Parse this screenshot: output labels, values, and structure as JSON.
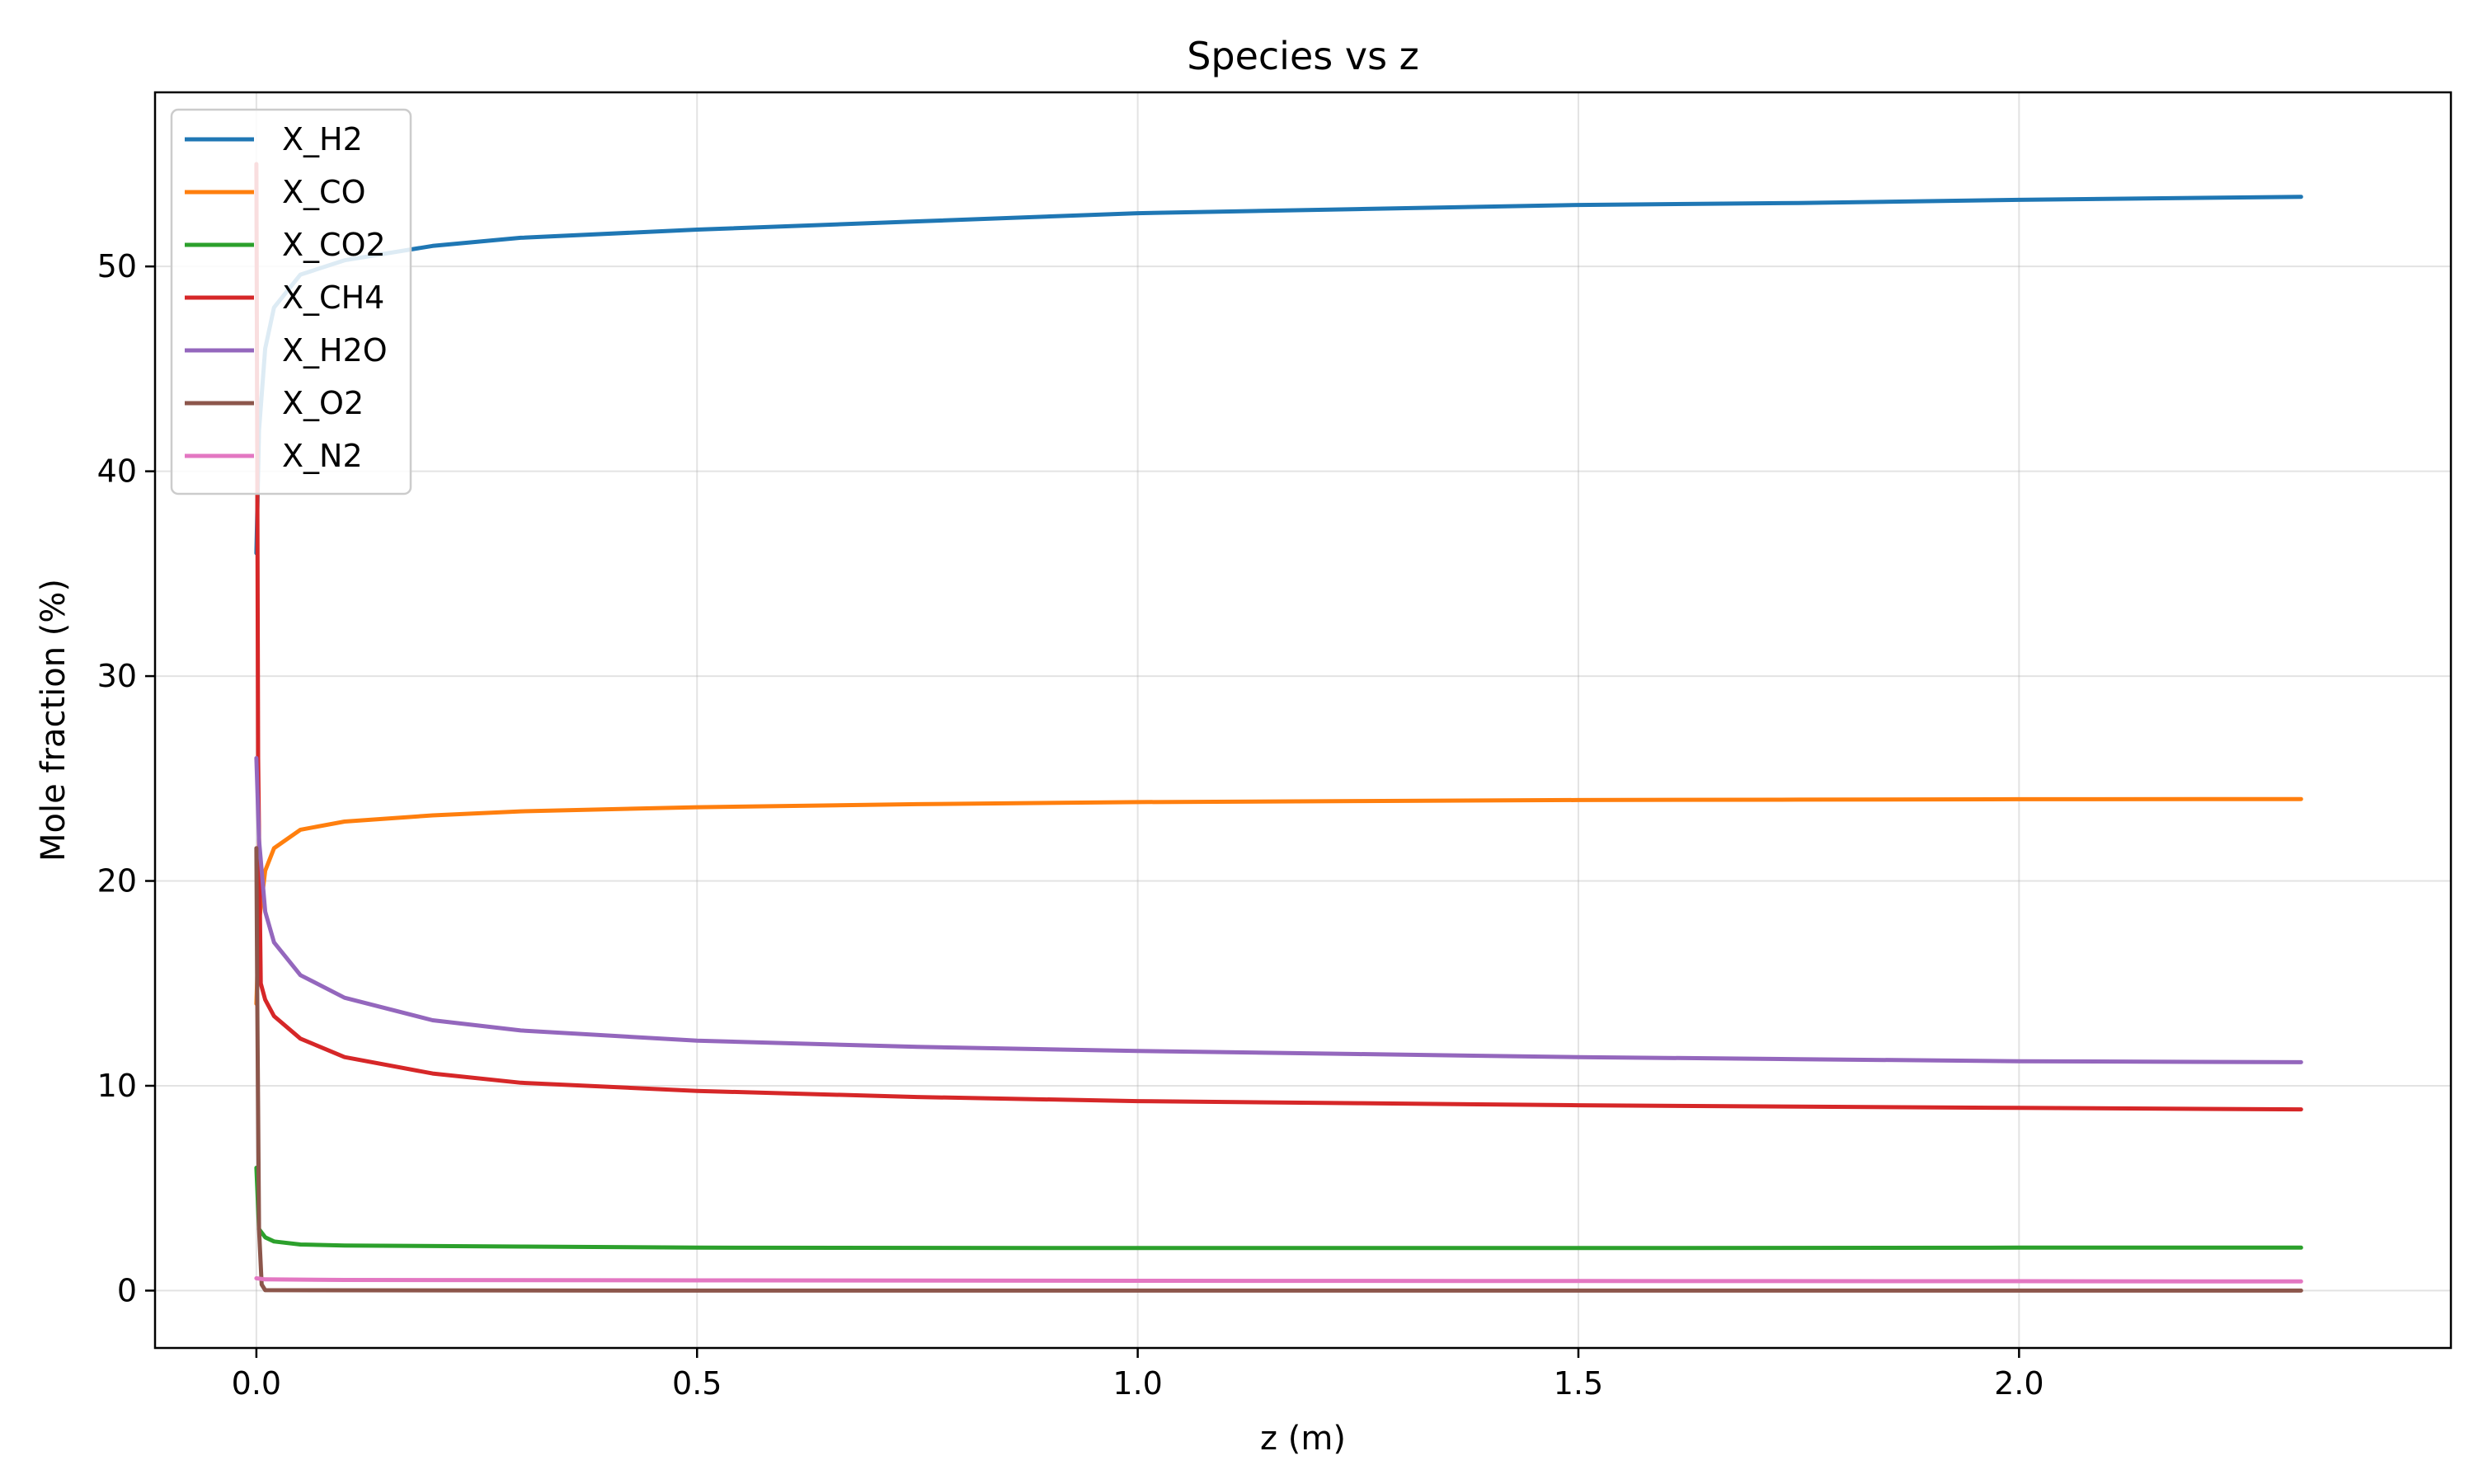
{
  "chart_data": {
    "type": "line",
    "title": "Species vs z",
    "xlabel": "z (m)",
    "ylabel": "Mole fraction (%)",
    "xlim": [
      -0.115,
      2.49
    ],
    "ylim": [
      -2.8,
      58.5
    ],
    "xticks": [
      0.0,
      0.5,
      1.0,
      1.5,
      2.0
    ],
    "xtick_labels": [
      "0.0",
      "0.5",
      "1.0",
      "1.5",
      "2.0"
    ],
    "yticks": [
      0,
      10,
      20,
      30,
      40,
      50
    ],
    "ytick_labels": [
      "0",
      "10",
      "20",
      "30",
      "40",
      "50"
    ],
    "grid": true,
    "legend_position": "top-left",
    "series": [
      {
        "name": "X_H2",
        "color": "#1f77b4",
        "x": [
          0,
          0.003,
          0.01,
          0.02,
          0.05,
          0.1,
          0.2,
          0.3,
          0.5,
          0.75,
          1.0,
          1.25,
          1.5,
          1.75,
          2.0,
          2.32
        ],
        "y": [
          36,
          42,
          46,
          48,
          49.6,
          50.3,
          51.0,
          51.4,
          51.8,
          52.2,
          52.6,
          52.8,
          53.0,
          53.1,
          53.25,
          53.4
        ]
      },
      {
        "name": "X_CO",
        "color": "#ff7f0e",
        "x": [
          0,
          0.003,
          0.01,
          0.02,
          0.05,
          0.1,
          0.2,
          0.3,
          0.5,
          0.75,
          1.0,
          1.25,
          1.5,
          1.75,
          2.0,
          2.32
        ],
        "y": [
          14,
          18,
          20.5,
          21.6,
          22.5,
          22.9,
          23.2,
          23.4,
          23.6,
          23.75,
          23.85,
          23.9,
          23.95,
          23.97,
          23.99,
          24.0
        ]
      },
      {
        "name": "X_CO2",
        "color": "#2ca02c",
        "x": [
          0,
          0.003,
          0.01,
          0.02,
          0.05,
          0.1,
          0.3,
          0.5,
          1.0,
          1.5,
          2.0,
          2.32
        ],
        "y": [
          6,
          3.0,
          2.6,
          2.4,
          2.25,
          2.2,
          2.15,
          2.1,
          2.08,
          2.08,
          2.1,
          2.1
        ]
      },
      {
        "name": "X_CH4",
        "color": "#d62728",
        "x": [
          0,
          0.002,
          0.005,
          0.01,
          0.02,
          0.05,
          0.1,
          0.2,
          0.3,
          0.5,
          0.75,
          1.0,
          1.25,
          1.5,
          1.75,
          2.0,
          2.32
        ],
        "y": [
          55,
          26,
          15,
          14.2,
          13.4,
          12.3,
          11.4,
          10.6,
          10.15,
          9.75,
          9.45,
          9.25,
          9.15,
          9.05,
          8.98,
          8.92,
          8.85
        ]
      },
      {
        "name": "X_H2O",
        "color": "#9467bd",
        "x": [
          0,
          0.003,
          0.01,
          0.02,
          0.05,
          0.1,
          0.2,
          0.3,
          0.5,
          0.75,
          1.0,
          1.25,
          1.5,
          1.75,
          2.0,
          2.32
        ],
        "y": [
          26,
          22,
          18.5,
          17.0,
          15.4,
          14.3,
          13.2,
          12.7,
          12.2,
          11.9,
          11.7,
          11.55,
          11.4,
          11.3,
          11.2,
          11.15
        ]
      },
      {
        "name": "X_O2",
        "color": "#8c564b",
        "x": [
          0,
          0.001,
          0.003,
          0.006,
          0.01,
          0.5,
          1.0,
          1.5,
          2.0,
          2.32
        ],
        "y": [
          21.6,
          14,
          3,
          0.3,
          0.02,
          0.0,
          0.0,
          0.0,
          0.0,
          0.0
        ]
      },
      {
        "name": "X_N2",
        "color": "#e377c2",
        "x": [
          0,
          0.01,
          0.1,
          0.5,
          1.0,
          1.5,
          2.0,
          2.32
        ],
        "y": [
          0.6,
          0.55,
          0.52,
          0.5,
          0.48,
          0.47,
          0.46,
          0.45
        ]
      }
    ]
  }
}
